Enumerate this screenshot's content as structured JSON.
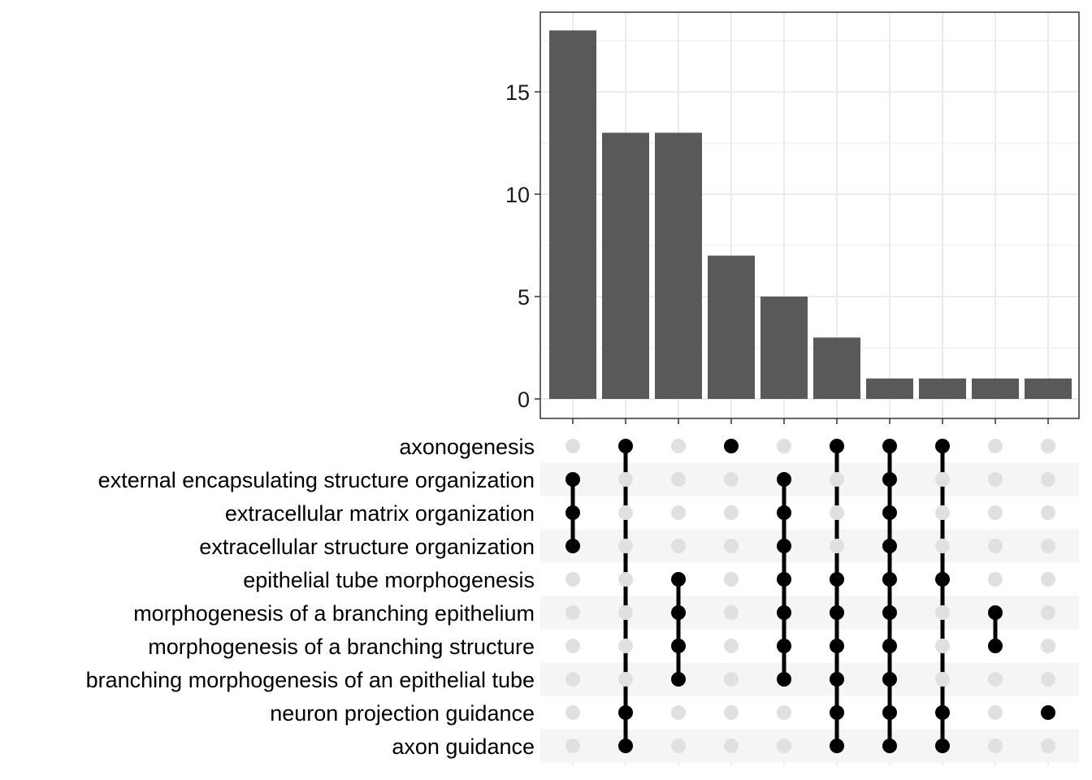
{
  "chart_data": {
    "type": "bar",
    "kind": "upset",
    "ylim": [
      0,
      18.9
    ],
    "yticks": [
      0,
      5,
      10,
      15
    ],
    "grid": true,
    "intersections": [
      {
        "size": 18,
        "members": [
          "external encapsulating structure organization",
          "extracellular matrix organization",
          "extracellular structure organization"
        ]
      },
      {
        "size": 13,
        "members": [
          "axonogenesis",
          "neuron projection guidance",
          "axon guidance"
        ]
      },
      {
        "size": 13,
        "members": [
          "epithelial tube morphogenesis",
          "morphogenesis of a branching epithelium",
          "morphogenesis of a branching structure",
          "branching morphogenesis of an epithelial tube"
        ]
      },
      {
        "size": 7,
        "members": [
          "axonogenesis"
        ]
      },
      {
        "size": 5,
        "members": [
          "external encapsulating structure organization",
          "extracellular matrix organization",
          "extracellular structure organization",
          "epithelial tube morphogenesis",
          "morphogenesis of a branching epithelium",
          "morphogenesis of a branching structure",
          "branching morphogenesis of an epithelial tube"
        ]
      },
      {
        "size": 3,
        "members": [
          "axonogenesis",
          "epithelial tube morphogenesis",
          "morphogenesis of a branching epithelium",
          "morphogenesis of a branching structure",
          "branching morphogenesis of an epithelial tube",
          "neuron projection guidance",
          "axon guidance"
        ]
      },
      {
        "size": 1,
        "members": [
          "axonogenesis",
          "external encapsulating structure organization",
          "extracellular matrix organization",
          "extracellular structure organization",
          "epithelial tube morphogenesis",
          "morphogenesis of a branching epithelium",
          "morphogenesis of a branching structure",
          "branching morphogenesis of an epithelial tube",
          "neuron projection guidance",
          "axon guidance"
        ]
      },
      {
        "size": 1,
        "members": [
          "axonogenesis",
          "epithelial tube morphogenesis",
          "neuron projection guidance",
          "axon guidance"
        ]
      },
      {
        "size": 1,
        "members": [
          "morphogenesis of a branching epithelium",
          "morphogenesis of a branching structure"
        ]
      },
      {
        "size": 1,
        "members": [
          "neuron projection guidance"
        ]
      }
    ],
    "sets": [
      "axonogenesis",
      "external encapsulating structure organization",
      "extracellular matrix organization",
      "extracellular structure organization",
      "epithelial tube morphogenesis",
      "morphogenesis of a branching epithelium",
      "morphogenesis of a branching structure",
      "branching morphogenesis of an epithelial tube",
      "neuron projection guidance",
      "axon guidance"
    ],
    "colors": {
      "bar": "#595959",
      "dot_active": "#000000",
      "dot_inactive": "#e0e0e0",
      "stripe": "#f5f5f5",
      "grid": "#ebebeb",
      "axis": "#333333"
    }
  }
}
